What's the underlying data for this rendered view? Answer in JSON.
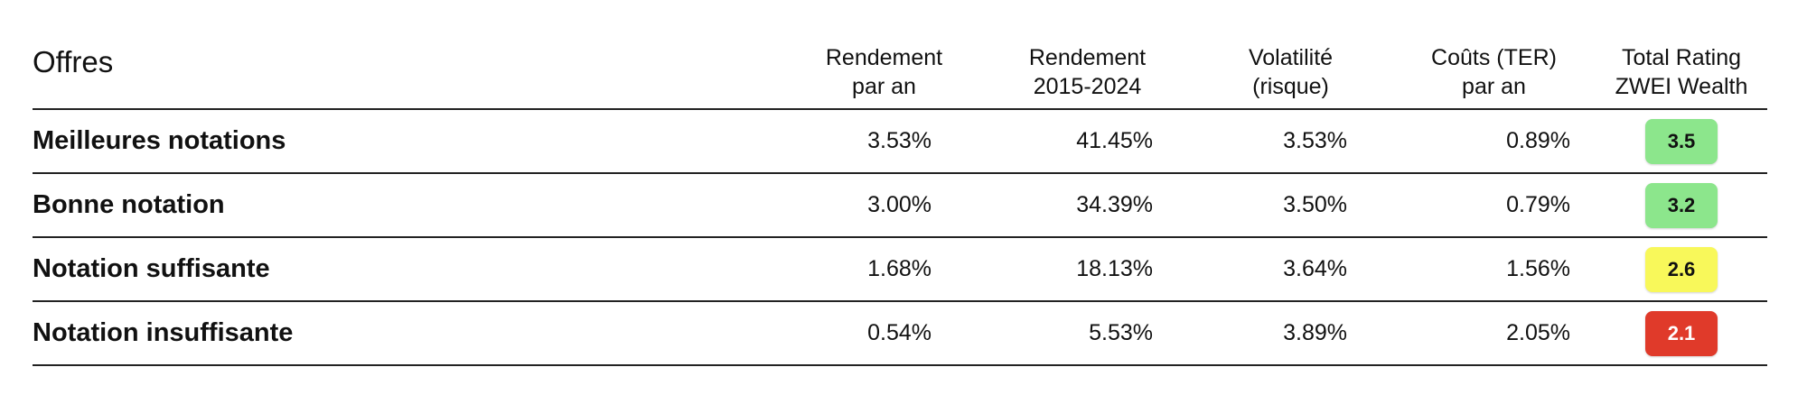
{
  "table": {
    "headers": {
      "offers": "Offres",
      "return_per_year": [
        "Rendement",
        "par an"
      ],
      "return_period": [
        "Rendement",
        "2015-2024"
      ],
      "volatility": [
        "Volatilité",
        "(risque)"
      ],
      "costs": [
        "Coûts (TER)",
        "par an"
      ],
      "rating": [
        "Total Rating",
        "ZWEI Wealth"
      ]
    },
    "rows": [
      {
        "name": "Meilleures notations",
        "return_per_year": "3.53%",
        "return_period": "41.45%",
        "volatility": "3.53%",
        "costs": "0.89%",
        "rating": "3.5",
        "rating_bg": "#8ce68c",
        "rating_fg": "#111111"
      },
      {
        "name": "Bonne notation",
        "return_per_year": "3.00%",
        "return_period": "34.39%",
        "volatility": "3.50%",
        "costs": "0.79%",
        "rating": "3.2",
        "rating_bg": "#8ce68c",
        "rating_fg": "#111111"
      },
      {
        "name": "Notation suffisante",
        "return_per_year": "1.68%",
        "return_period": "18.13%",
        "volatility": "3.64%",
        "costs": "1.56%",
        "rating": "2.6",
        "rating_bg": "#f8f85a",
        "rating_fg": "#111111"
      },
      {
        "name": "Notation insuffisante",
        "return_per_year": "0.54%",
        "return_period": "5.53%",
        "volatility": "3.89%",
        "costs": "2.05%",
        "rating": "2.1",
        "rating_bg": "#e03a2a",
        "rating_fg": "#ffffff"
      }
    ]
  }
}
